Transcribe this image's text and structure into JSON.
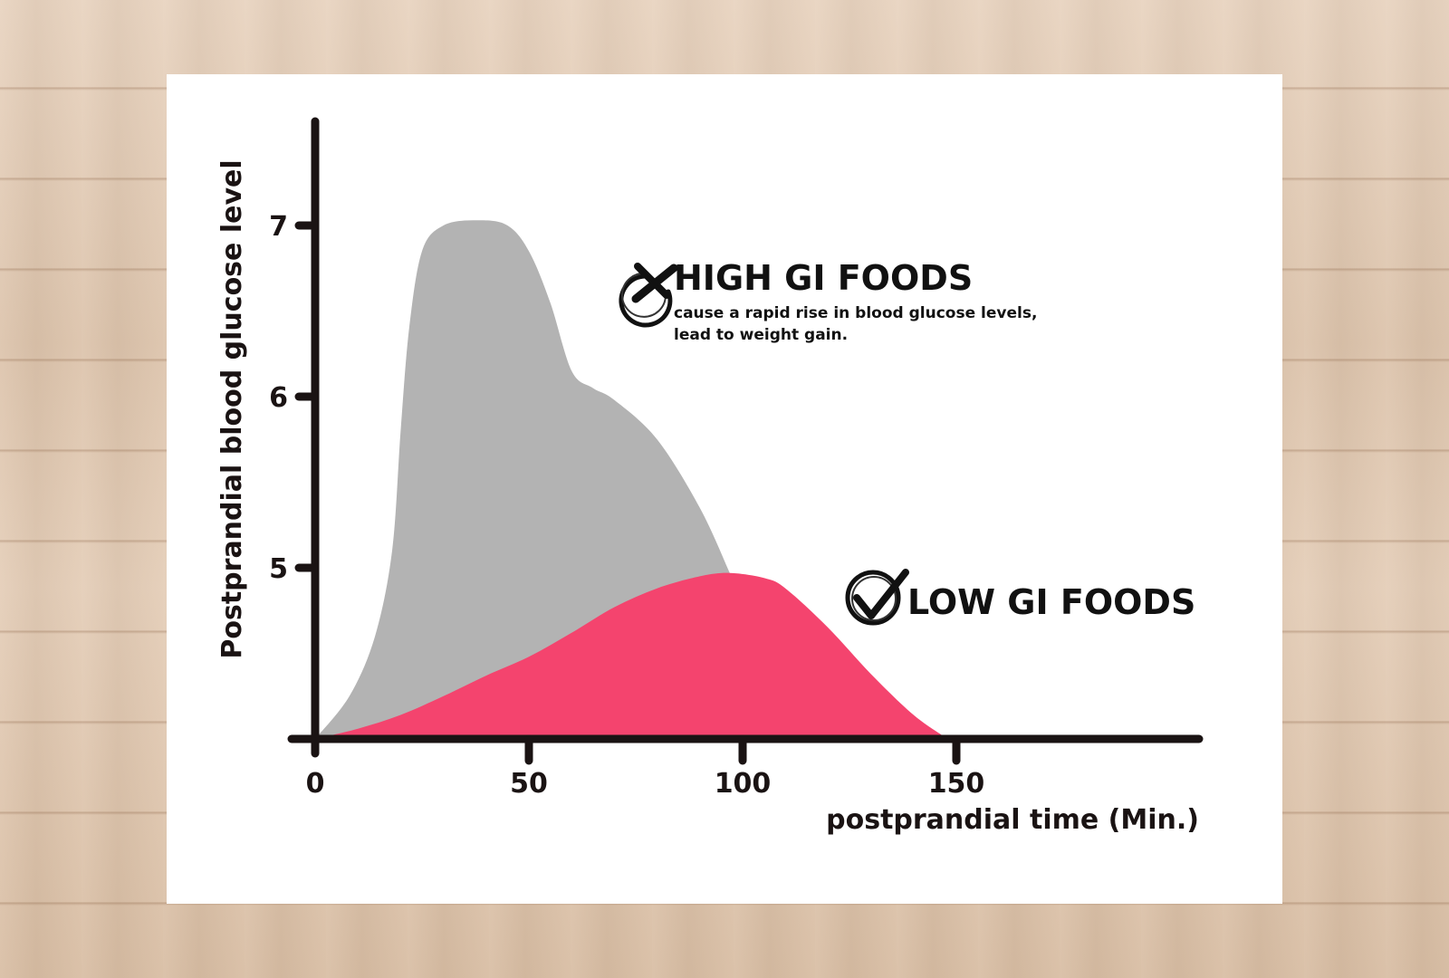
{
  "chart_data": {
    "type": "area",
    "ylabel": "Postprandial blood glucose level",
    "xlabel": "postprandial time (Min.)",
    "x_ticks": [
      0,
      50,
      100,
      150
    ],
    "y_ticks": [
      5,
      6,
      7
    ],
    "xlim": [
      0,
      200
    ],
    "ylim": [
      4.0,
      7.65
    ],
    "grid": false,
    "series": [
      {
        "name": "HIGH GI FOODS",
        "color": "#b3b3b3",
        "x": [
          0,
          8,
          14,
          18,
          20,
          22,
          25,
          30,
          38,
          45,
          50,
          55,
          60,
          65,
          70,
          80,
          90,
          97
        ],
        "y": [
          4.0,
          4.25,
          4.6,
          5.1,
          5.8,
          6.4,
          6.85,
          7.0,
          7.03,
          7.0,
          6.85,
          6.55,
          6.15,
          6.05,
          5.98,
          5.75,
          5.35,
          4.97
        ]
      },
      {
        "name": "LOW GI FOODS",
        "color": "#f4446e",
        "x": [
          0,
          10,
          20,
          30,
          40,
          50,
          60,
          70,
          80,
          90,
          97,
          105,
          110,
          120,
          130,
          140,
          148
        ],
        "y": [
          4.0,
          4.06,
          4.14,
          4.25,
          4.37,
          4.48,
          4.62,
          4.77,
          4.88,
          4.95,
          4.97,
          4.94,
          4.88,
          4.65,
          4.38,
          4.14,
          4.0
        ]
      }
    ],
    "annotations": [
      {
        "id": "high",
        "title": "HIGH GI FOODS",
        "lines": [
          "cause a rapid rise in blood glucose levels,",
          "lead to weight gain."
        ],
        "icon": "cross-circle-icon"
      },
      {
        "id": "low",
        "title": "LOW GI FOODS",
        "lines": [],
        "icon": "check-circle-icon"
      }
    ]
  }
}
